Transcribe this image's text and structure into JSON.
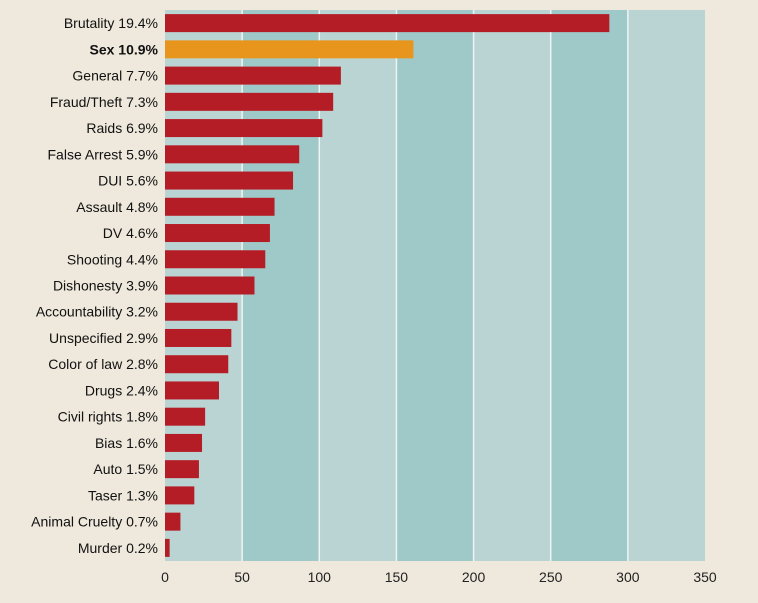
{
  "chart_data": {
    "type": "bar",
    "orientation": "horizontal",
    "title": "",
    "xlabel": "",
    "ylabel": "",
    "xlim": [
      0,
      350
    ],
    "xticks": [
      0,
      50,
      100,
      150,
      200,
      250,
      300,
      350
    ],
    "grid": true,
    "categories": [
      "Brutality 19.4%",
      "Sex 10.9%",
      "General 7.7%",
      "Fraud/Theft 7.3%",
      "Raids 6.9%",
      "False Arrest 5.9%",
      "DUI 5.6%",
      "Assault 4.8%",
      "DV 4.6%",
      "Shooting 4.4%",
      "Dishonesty 3.9%",
      "Accountability 3.2%",
      "Unspecified 2.9%",
      "Color of law 2.8%",
      "Drugs 2.4%",
      "Civil rights 1.8%",
      "Bias 1.6%",
      "Auto 1.5%",
      "Taser 1.3%",
      "Animal Cruelty 0.7%",
      "Murder 0.2%"
    ],
    "values": [
      288,
      161,
      114,
      109,
      102,
      87,
      83,
      71,
      68,
      65,
      58,
      47,
      43,
      41,
      35,
      26,
      24,
      22,
      19,
      10,
      3
    ],
    "highlight_index": 1,
    "colors": {
      "bar": "#b51d26",
      "highlight": "#e8951e",
      "band_light": "#b9d4d3",
      "band_dark": "#9fc9c9",
      "gridline": "#eef4f2",
      "background": "#efe8dc"
    }
  }
}
